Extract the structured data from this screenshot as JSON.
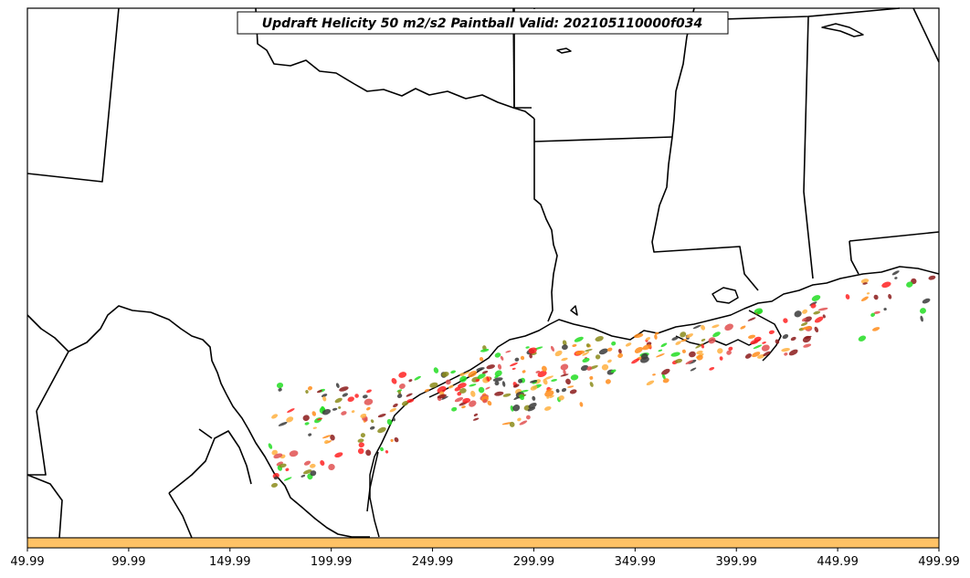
{
  "title": "Updraft Helicity 50 m2/s2 Paintball Valid: 202105110000f034",
  "colorbar": {
    "color": "#ffc266",
    "ticks": [
      "49.99",
      "99.99",
      "149.99",
      "199.99",
      "249.99",
      "299.99",
      "349.99",
      "399.99",
      "449.99",
      "499.99"
    ]
  },
  "paintball_colors": [
    "#ff2222",
    "#22dd22",
    "#ff8c1a",
    "#8b1a1a",
    "#3a3a3a",
    "#8b8b1a",
    "#e05050",
    "#ffb040"
  ]
}
